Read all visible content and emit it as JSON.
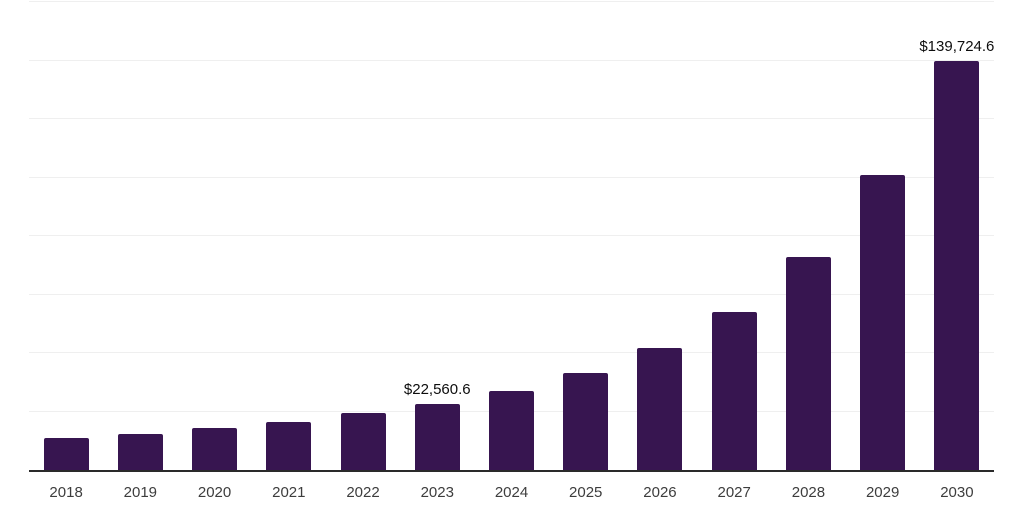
{
  "chart_data": {
    "type": "bar",
    "title": "",
    "xlabel": "",
    "ylabel": "",
    "categories": [
      "2018",
      "2019",
      "2020",
      "2021",
      "2022",
      "2023",
      "2024",
      "2025",
      "2026",
      "2027",
      "2028",
      "2029",
      "2030"
    ],
    "values": [
      10800,
      12200,
      14500,
      16500,
      19400,
      22560.6,
      27100,
      33300,
      41600,
      54100,
      72900,
      100900,
      139724.6
    ],
    "point_labels": [
      null,
      null,
      null,
      null,
      null,
      "$22,560.6",
      null,
      null,
      null,
      null,
      null,
      null,
      "$139,724.6"
    ],
    "ylim": [
      0,
      160000
    ],
    "gridline_interval": 20000,
    "grid": "horizontal",
    "y_tick_labels_visible": false,
    "legend": "none",
    "bar_color": "#371550",
    "axis_color": "#2a2a2a",
    "gridline_color": "#efefef",
    "x_tick_color": "#3d3d3d",
    "value_label_color": "#0d0d0d"
  }
}
